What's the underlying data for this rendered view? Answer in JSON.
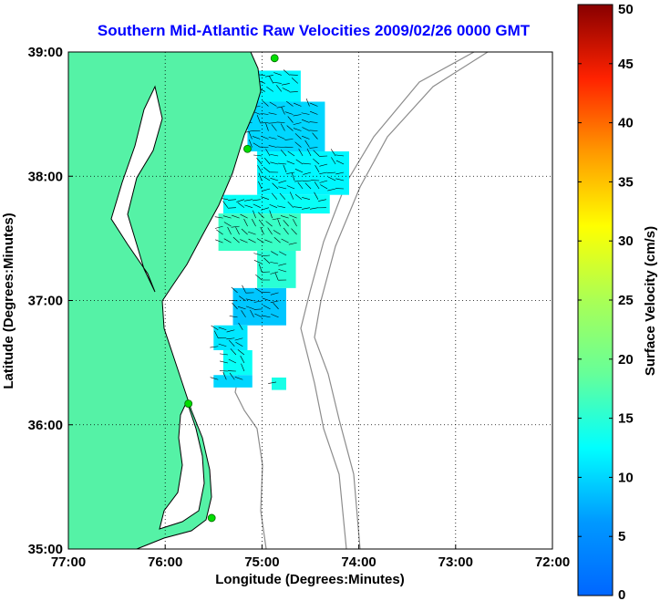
{
  "chart_data": {
    "type": "heatmap",
    "title": "Southern Mid-Atlantic Raw Velocities 2009/02/26 0000 GMT",
    "xlabel": "Longitude (Degrees:Minutes)",
    "ylabel": "Latitude (Degrees:Minutes)",
    "xlim": [
      -77,
      -72
    ],
    "ylim": [
      35,
      39
    ],
    "x_ticks": [
      {
        "value": -77,
        "label": "77:00"
      },
      {
        "value": -76,
        "label": "76:00"
      },
      {
        "value": -75,
        "label": "75:00"
      },
      {
        "value": -74,
        "label": "74:00"
      },
      {
        "value": -73,
        "label": "73:00"
      },
      {
        "value": -72,
        "label": "72:00"
      }
    ],
    "y_ticks": [
      {
        "value": 35,
        "label": "35:00"
      },
      {
        "value": 36,
        "label": "36:00"
      },
      {
        "value": 37,
        "label": "37:00"
      },
      {
        "value": 38,
        "label": "38:00"
      },
      {
        "value": 39,
        "label": "39:00"
      }
    ],
    "grid": "dotted",
    "colorbar": {
      "label": "Surface Velocity (cm/s)",
      "min": 0,
      "max": 50,
      "ticks": [
        0,
        5,
        10,
        15,
        20,
        25,
        30,
        35,
        40,
        45,
        50
      ],
      "colormap": "jet",
      "placement": "right"
    },
    "colors": {
      "land": "#55f2a6",
      "coast": "#000000",
      "bathymetry": "#8c8c8c",
      "station": "#00dd00",
      "title": "#0000ff"
    },
    "stations": [
      {
        "lon": -74.87,
        "lat": 38.95
      },
      {
        "lon": -75.15,
        "lat": 38.22
      },
      {
        "lon": -75.76,
        "lat": 36.17
      },
      {
        "lon": -75.52,
        "lat": 35.25
      }
    ],
    "coverage_cells": [
      {
        "lon0": -75.1,
        "lat0": 38.85,
        "lon1": -74.6,
        "lat1": 38.6,
        "speed": 12
      },
      {
        "lon0": -75.15,
        "lat0": 38.6,
        "lon1": -74.35,
        "lat1": 38.2,
        "speed": 10
      },
      {
        "lon0": -75.05,
        "lat0": 38.2,
        "lon1": -74.1,
        "lat1": 37.85,
        "speed": 12
      },
      {
        "lon0": -75.4,
        "lat0": 37.85,
        "lon1": -74.3,
        "lat1": 37.7,
        "speed": 13
      },
      {
        "lon0": -75.45,
        "lat0": 37.7,
        "lon1": -74.6,
        "lat1": 37.4,
        "speed": 16
      },
      {
        "lon0": -75.05,
        "lat0": 37.4,
        "lon1": -74.65,
        "lat1": 37.1,
        "speed": 15
      },
      {
        "lon0": -75.3,
        "lat0": 37.1,
        "lon1": -74.75,
        "lat1": 36.8,
        "speed": 9
      },
      {
        "lon0": -75.5,
        "lat0": 36.8,
        "lon1": -75.15,
        "lat1": 36.6,
        "speed": 11
      },
      {
        "lon0": -75.4,
        "lat0": 36.6,
        "lon1": -75.1,
        "lat1": 36.4,
        "speed": 13
      },
      {
        "lon0": -75.5,
        "lat0": 36.4,
        "lon1": -75.1,
        "lat1": 36.3,
        "speed": 10
      },
      {
        "lon0": -74.9,
        "lat0": 36.38,
        "lon1": -74.75,
        "lat1": 36.28,
        "speed": 14
      }
    ]
  }
}
